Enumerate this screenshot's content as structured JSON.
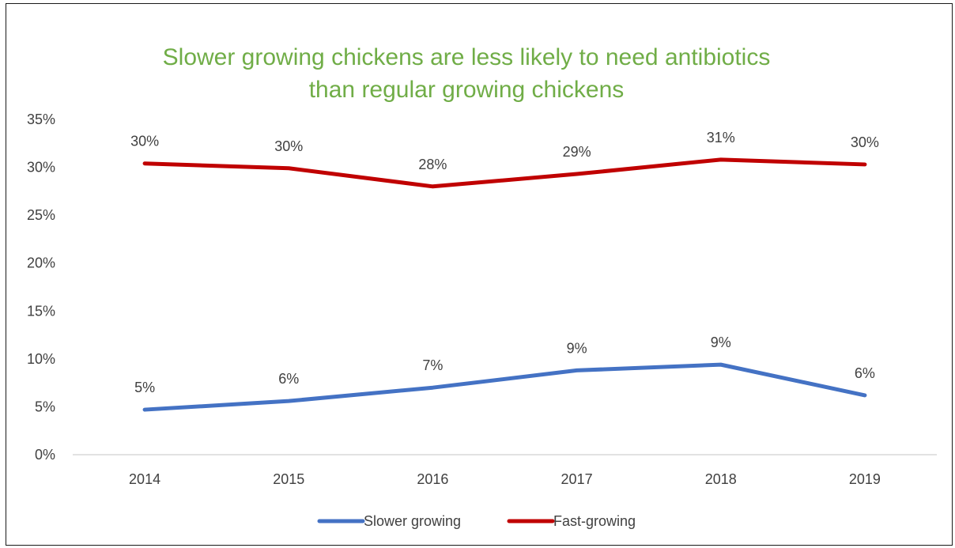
{
  "chart_data": {
    "type": "line",
    "title_lines": [
      "Slower growing chickens are less likely to need antibiotics",
      "than regular growing chickens"
    ],
    "xlabel": "",
    "ylabel": "",
    "categories": [
      "2014",
      "2015",
      "2016",
      "2017",
      "2018",
      "2019"
    ],
    "ylim": [
      0,
      0.35
    ],
    "yticks": [
      0,
      0.05,
      0.1,
      0.15,
      0.2,
      0.25,
      0.3,
      0.35
    ],
    "ytick_labels": [
      "0%",
      "5%",
      "10%",
      "15%",
      "20%",
      "25%",
      "30%",
      "35%"
    ],
    "grid": false,
    "legend_position": "bottom",
    "series": [
      {
        "name": "Slower growing",
        "color": "#4472c4",
        "values": [
          0.047,
          0.056,
          0.07,
          0.088,
          0.094,
          0.062
        ],
        "labels": [
          "5%",
          "6%",
          "7%",
          "9%",
          "9%",
          "6%"
        ]
      },
      {
        "name": "Fast-growing",
        "color": "#c00000",
        "values": [
          0.304,
          0.299,
          0.28,
          0.293,
          0.308,
          0.303
        ],
        "labels": [
          "30%",
          "30%",
          "28%",
          "29%",
          "31%",
          "30%"
        ]
      }
    ]
  }
}
